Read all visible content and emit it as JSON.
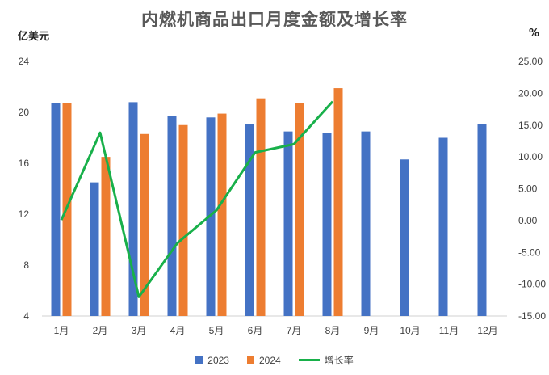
{
  "chart_data": {
    "type": "bar+line",
    "title": "内燃机商品出口月度金额及增长率",
    "y_left_unit": "亿美元",
    "y_right_unit": "%",
    "categories": [
      "1月",
      "2月",
      "3月",
      "4月",
      "5月",
      "6月",
      "7月",
      "8月",
      "9月",
      "10月",
      "11月",
      "12月"
    ],
    "y_left_ticks": [
      "4",
      "8",
      "12",
      "16",
      "20",
      "24"
    ],
    "y_right_ticks": [
      "-15.00",
      "-10.00",
      "-5.00",
      "0.00",
      "5.00",
      "10.00",
      "15.00",
      "20.00",
      "25.00"
    ],
    "y_left_range": [
      4,
      24
    ],
    "y_right_range": [
      -15,
      25
    ],
    "series": [
      {
        "name": "2023",
        "type": "bar",
        "axis": "left",
        "color": "#4472C4",
        "values": [
          20.7,
          14.5,
          20.8,
          19.7,
          19.6,
          19.1,
          18.5,
          18.4,
          18.5,
          16.3,
          18.0,
          19.1
        ]
      },
      {
        "name": "2024",
        "type": "bar",
        "axis": "left",
        "color": "#ED7D31",
        "values": [
          20.7,
          16.5,
          18.3,
          19.0,
          19.9,
          21.1,
          20.7,
          21.9,
          null,
          null,
          null,
          null
        ]
      },
      {
        "name": "增长率",
        "type": "line",
        "axis": "right",
        "color": "#18B04A",
        "values": [
          0.1,
          13.8,
          -12.0,
          -3.5,
          1.6,
          10.7,
          12.0,
          18.7,
          null,
          null,
          null,
          null
        ]
      }
    ],
    "grid": false,
    "legend_position": "bottom"
  }
}
